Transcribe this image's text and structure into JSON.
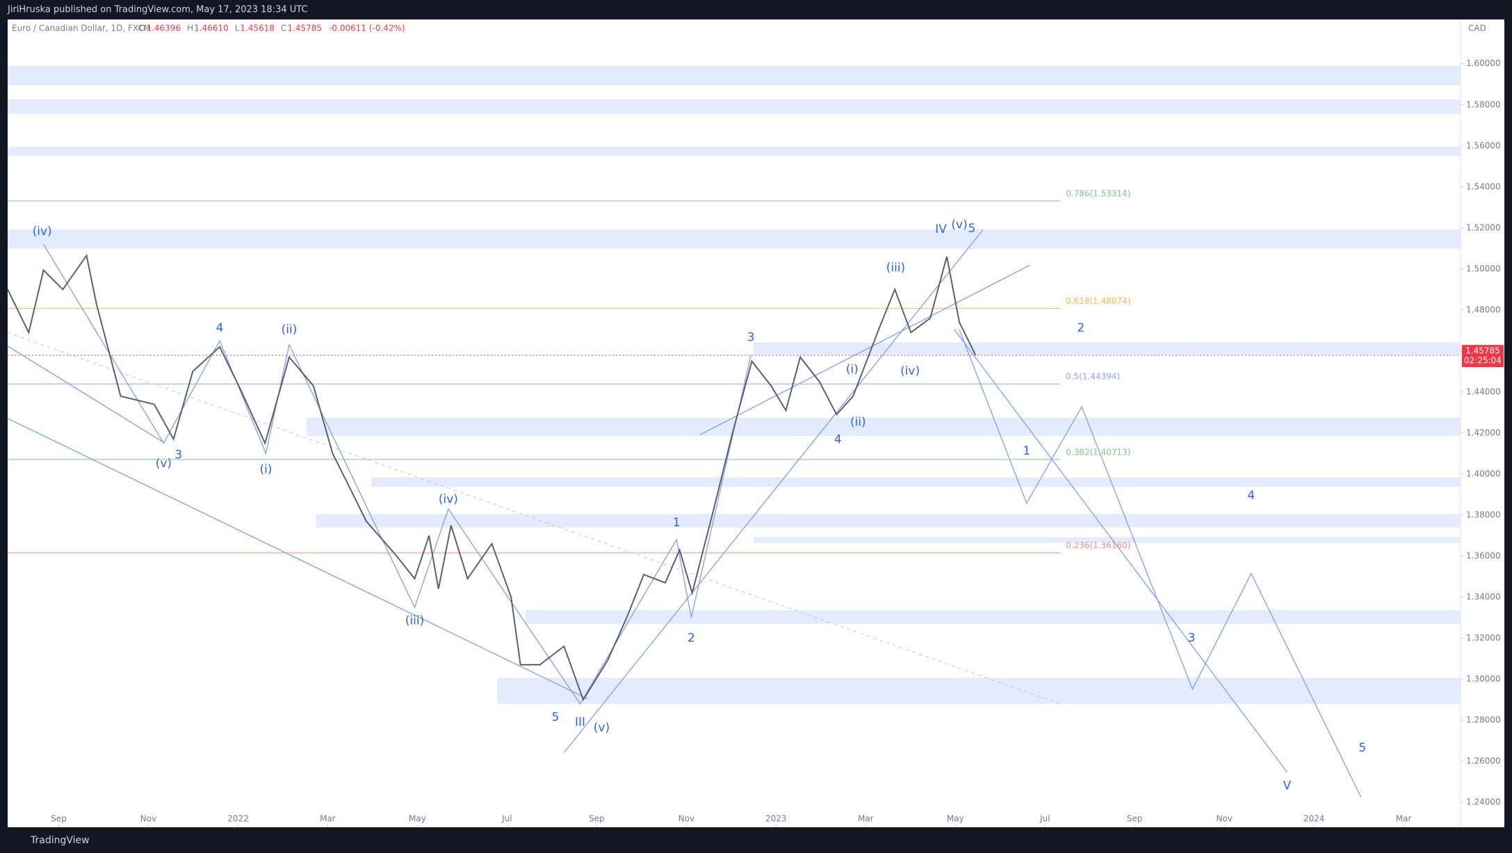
{
  "header": {
    "publisher": "JiriHruska published on TradingView.com, May 17, 2023 18:34 UTC",
    "footer": "TradingView"
  },
  "chart_data": {
    "type": "line",
    "title": "Euro / Canadian Dollar, 1D, FXCM",
    "ohlc": [
      {
        "label": "O",
        "value": "1.46396"
      },
      {
        "label": "H",
        "value": "1.46610"
      },
      {
        "label": "L",
        "value": "1.45618"
      },
      {
        "label": "C",
        "value": "1.45785"
      },
      {
        "label": "",
        "value": "-0.00611 (-0.42%)"
      }
    ],
    "currency": "CAD",
    "last_price": {
      "value": 1.45785,
      "label": "1.45785"
    },
    "countdown": "02:25:04",
    "xlim": [
      -1.14,
      31.27
    ],
    "ylim": [
      1.2278,
      1.6216
    ],
    "xticks": [
      {
        "value": 0,
        "label": "Sep"
      },
      {
        "value": 2,
        "label": "Nov"
      },
      {
        "value": 4,
        "label": "2022"
      },
      {
        "value": 6,
        "label": "Mar"
      },
      {
        "value": 8,
        "label": "May"
      },
      {
        "value": 10,
        "label": "Jul"
      },
      {
        "value": 12,
        "label": "Sep"
      },
      {
        "value": 14,
        "label": "Nov"
      },
      {
        "value": 16,
        "label": "2023"
      },
      {
        "value": 18,
        "label": "Mar"
      },
      {
        "value": 20,
        "label": "May"
      },
      {
        "value": 22,
        "label": "Jul"
      },
      {
        "value": 24,
        "label": "Sep"
      },
      {
        "value": 26,
        "label": "Nov"
      },
      {
        "value": 28,
        "label": "2024"
      },
      {
        "value": 30,
        "label": "Mar"
      }
    ],
    "yticks": [
      {
        "value": 1.24,
        "label": "1.24000"
      },
      {
        "value": 1.26,
        "label": "1.26000"
      },
      {
        "value": 1.28,
        "label": "1.28000"
      },
      {
        "value": 1.3,
        "label": "1.30000"
      },
      {
        "value": 1.32,
        "label": "1.32000"
      },
      {
        "value": 1.34,
        "label": "1.34000"
      },
      {
        "value": 1.36,
        "label": "1.36000"
      },
      {
        "value": 1.38,
        "label": "1.38000"
      },
      {
        "value": 1.4,
        "label": "1.40000"
      },
      {
        "value": 1.42,
        "label": "1.42000"
      },
      {
        "value": 1.44,
        "label": "1.44000"
      },
      {
        "value": 1.46,
        "label": "1.46000"
      },
      {
        "value": 1.48,
        "label": "1.48000"
      },
      {
        "value": 1.5,
        "label": "1.50000"
      },
      {
        "value": 1.52,
        "label": "1.52000"
      },
      {
        "value": 1.54,
        "label": "1.54000"
      },
      {
        "value": 1.56,
        "label": "1.56000"
      },
      {
        "value": 1.58,
        "label": "1.58000"
      },
      {
        "value": 1.6,
        "label": "1.60000"
      }
    ],
    "series": [
      {
        "name": "EURCAD",
        "color": "#5d606b",
        "x": [
          -1.14,
          -0.67,
          -0.34,
          0.09,
          0.62,
          0.84,
          1.38,
          2.13,
          2.56,
          2.99,
          3.59,
          4.06,
          4.6,
          5.14,
          5.68,
          6.11,
          6.43,
          6.86,
          7.5,
          7.94,
          8.26,
          8.47,
          8.75,
          9.12,
          9.66,
          10.09,
          10.3,
          10.73,
          11.27,
          11.7,
          12.24,
          12.67,
          13.05,
          13.53,
          13.85,
          14.13,
          14.6,
          15.03,
          15.46,
          15.89,
          16.22,
          16.54,
          16.97,
          17.35,
          17.72,
          18.3,
          18.65,
          19.01,
          19.44,
          19.81,
          20.09,
          20.45
        ],
        "values": [
          1.49,
          1.469,
          1.4994,
          1.49,
          1.5065,
          1.483,
          1.438,
          1.434,
          1.417,
          1.45,
          1.462,
          1.441,
          1.415,
          1.457,
          1.443,
          1.41,
          1.396,
          1.377,
          1.361,
          1.349,
          1.37,
          1.344,
          1.375,
          1.349,
          1.366,
          1.34,
          1.307,
          1.307,
          1.316,
          1.29,
          1.309,
          1.33,
          1.351,
          1.347,
          1.363,
          1.342,
          1.382,
          1.42,
          1.455,
          1.443,
          1.431,
          1.457,
          1.445,
          1.429,
          1.438,
          1.471,
          1.49,
          1.469,
          1.476,
          1.506,
          1.474,
          1.458
        ]
      }
    ],
    "fib_levels": [
      {
        "label": "0.786(1.53314)",
        "value": 1.53314,
        "color": "#81c784"
      },
      {
        "label": "0.618(1.48074)",
        "value": 1.48074,
        "color": "#ffb74d"
      },
      {
        "label": "0.5(1.44394)",
        "value": 1.44394,
        "color": "#90a4f0"
      },
      {
        "label": "0.382(1.40713)",
        "value": 1.40713,
        "color": "#81c784"
      },
      {
        "label": "0.236(1.36160)",
        "value": 1.3616,
        "color": "#f48a8a"
      }
    ],
    "fib_end": 22.34,
    "zones": [
      {
        "from": -1.14,
        "low": 1.5896,
        "high": 1.599
      },
      {
        "from": -1.14,
        "low": 1.5756,
        "high": 1.5826
      },
      {
        "from": -1.14,
        "low": 1.555,
        "high": 1.5596
      },
      {
        "from": -1.14,
        "low": 1.5098,
        "high": 1.5192
      },
      {
        "from": 15.5,
        "low": 1.4582,
        "high": 1.4642
      },
      {
        "from": 5.53,
        "low": 1.4186,
        "high": 1.4275
      },
      {
        "from": 6.97,
        "low": 1.3937,
        "high": 1.3984
      },
      {
        "from": 5.74,
        "low": 1.374,
        "high": 1.3805
      },
      {
        "from": 15.5,
        "low": 1.3665,
        "high": 1.3693
      },
      {
        "from": 10.41,
        "low": 1.327,
        "high": 1.3336
      },
      {
        "from": 9.78,
        "low": 1.288,
        "high": 1.3007
      }
    ],
    "lines": [
      {
        "x": [
          20.09,
          21.59,
          22.82,
          25.29,
          26.6,
          29.05
        ],
        "y": [
          1.4704,
          1.3858,
          1.4328,
          1.2951,
          1.3515,
          1.2425
        ]
      },
      {
        "x": [
          19.98,
          27.4
        ],
        "y": [
          1.4704,
          1.2547
        ]
      },
      {
        "x": [
          14.3,
          21.66
        ],
        "y": [
          1.4191,
          1.5018
        ]
      },
      {
        "x": [
          11.27,
          20.62
        ],
        "y": [
          1.2642,
          1.5192
        ]
      },
      {
        "x": [
          -1.14,
          11.8
        ],
        "y": [
          1.4271,
          1.2904
        ]
      },
      {
        "x": [
          -1.14,
          2.34
        ],
        "y": [
          1.4624,
          1.4154
        ]
      },
      {
        "x": [
          -0.34,
          2.34,
          3.59,
          4.62,
          5.14,
          7.94,
          8.69,
          11.63,
          13.78,
          14.11,
          15.44
        ],
        "y": [
          1.512,
          1.415,
          1.465,
          1.41,
          1.463,
          1.335,
          1.383,
          1.288,
          1.368,
          1.33,
          1.458
        ]
      }
    ],
    "trend_dashed": {
      "x": [
        -1.14,
        22.34
      ],
      "y": [
        1.4689,
        1.288
      ]
    },
    "wave_labels": [
      {
        "text": "(iv)",
        "x": -0.37,
        "y": 1.5182
      },
      {
        "text": "3",
        "x": 2.67,
        "y": 1.4092
      },
      {
        "text": "(v)",
        "x": 2.34,
        "y": 1.405
      },
      {
        "text": "4",
        "x": 3.59,
        "y": 1.4712
      },
      {
        "text": "(ii)",
        "x": 5.14,
        "y": 1.4703
      },
      {
        "text": "(i)",
        "x": 4.62,
        "y": 1.4022
      },
      {
        "text": "(iv)",
        "x": 8.69,
        "y": 1.3876
      },
      {
        "text": "(iii)",
        "x": 7.94,
        "y": 1.3284
      },
      {
        "text": "5",
        "x": 11.08,
        "y": 1.2814
      },
      {
        "text": "III",
        "x": 11.63,
        "y": 1.279
      },
      {
        "text": "(v)",
        "x": 12.11,
        "y": 1.2762
      },
      {
        "text": "1",
        "x": 13.78,
        "y": 1.3763
      },
      {
        "text": "2",
        "x": 14.11,
        "y": 1.32
      },
      {
        "text": "3",
        "x": 15.44,
        "y": 1.4665
      },
      {
        "text": "4",
        "x": 17.38,
        "y": 1.4167
      },
      {
        "text": "(ii)",
        "x": 17.83,
        "y": 1.4252
      },
      {
        "text": "(i)",
        "x": 17.7,
        "y": 1.451
      },
      {
        "text": "(iv)",
        "x": 18.99,
        "y": 1.4501
      },
      {
        "text": "(iii)",
        "x": 18.67,
        "y": 1.5004
      },
      {
        "text": "IV",
        "x": 19.68,
        "y": 1.5192
      },
      {
        "text": "(v)",
        "x": 20.09,
        "y": 1.5215
      },
      {
        "text": "5",
        "x": 20.37,
        "y": 1.5196
      },
      {
        "text": "2",
        "x": 22.8,
        "y": 1.4712
      },
      {
        "text": "1",
        "x": 21.59,
        "y": 1.4111
      },
      {
        "text": "4",
        "x": 26.6,
        "y": 1.3895
      },
      {
        "text": "3",
        "x": 25.27,
        "y": 1.32
      },
      {
        "text": "5",
        "x": 29.08,
        "y": 1.2664
      },
      {
        "text": "V",
        "x": 27.4,
        "y": 1.248
      }
    ]
  }
}
